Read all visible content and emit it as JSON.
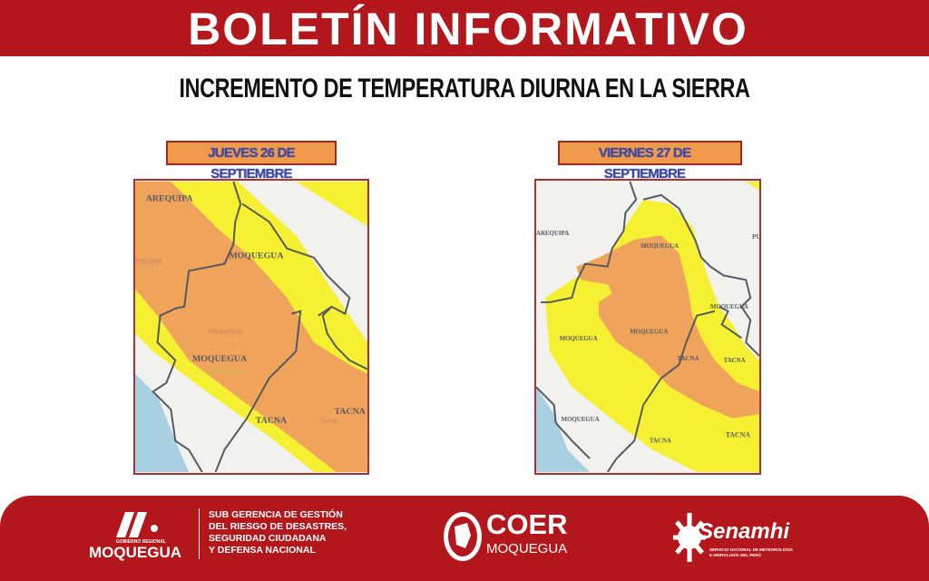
{
  "header": {
    "title": "BOLETÍN INFORMATIVO",
    "subtitle": "INCREMENTO DE TEMPERATURA DIURNA EN LA SIERRA"
  },
  "colors": {
    "brand_red": "#b3171c",
    "alert_yellow": "#f5f032",
    "alert_orange": "#f0a35a",
    "sea": "#a9cfe2"
  },
  "maps": [
    {
      "date_label": "JUEVES 26 DE SEPTIEMBRE",
      "labels": [
        "AREQUIPA",
        "MOQUEGUA",
        "MOQUEGUA",
        "TACNA",
        "TACNA",
        "equipa",
        "Moquegua",
        "Moquegua",
        "Tacna"
      ]
    },
    {
      "date_label": "VIERNES 27 DE SEPTIEMBRE",
      "labels": [
        "AREQUIPA",
        "MOQUEGUA",
        "MOQUEGUA",
        "MOQUEGUA",
        "MOQUEGUA",
        "TACNA",
        "TACNA",
        "TACNA",
        "TACNA",
        "PU"
      ]
    }
  ],
  "footer": {
    "gob_small": "GOBIERNO REGIONAL",
    "gob_name": "MOQUEGUA",
    "sub_lines": [
      "SUB GERENCIA DE GESTIÓN",
      "DEL RIESGO DE DESASTRES,",
      "SEGURIDAD CIUDADANA",
      "Y DEFENSA NACIONAL"
    ],
    "coer_title": "COER",
    "coer_sub": "MOQUEGUA",
    "senamhi_name": "Senamhi",
    "senamhi_sub1": "SERVICIO NACIONAL DE METEOROLOGÍA",
    "senamhi_sub2": "E HIDROLOGÍA DEL PERÚ"
  }
}
